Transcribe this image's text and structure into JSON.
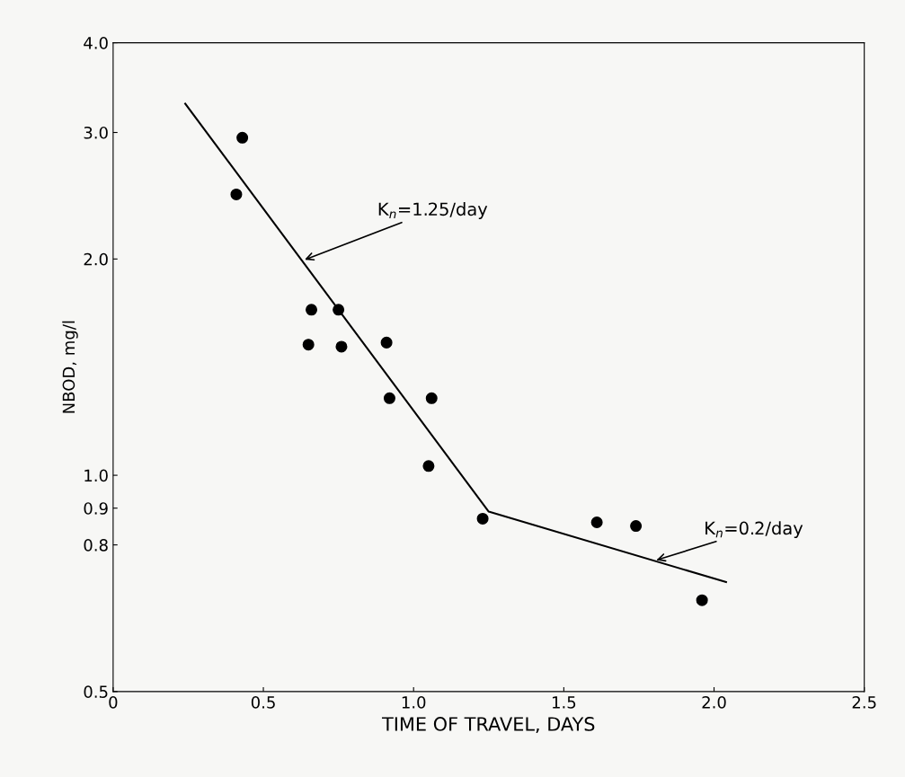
{
  "chart_data": {
    "type": "scatter",
    "xlabel": "TIME OF TRAVEL, DAYS",
    "ylabel": "NBOD, mg/l",
    "log": "y",
    "grid": false,
    "legend": false,
    "marker": "circle",
    "xlim": [
      0,
      2.5
    ],
    "xticks": [
      0,
      0.5,
      {
        "value": 1,
        "label": "1.0"
      },
      1.5,
      {
        "value": 2,
        "label": "2.0"
      },
      2.5
    ],
    "ylim": [
      0.5,
      4.0
    ],
    "yticks": [
      0.5,
      0.8,
      0.9,
      {
        "value": 1,
        "label": "1.0"
      },
      {
        "value": 2,
        "label": "2.0"
      },
      {
        "value": 3,
        "label": "3.0"
      },
      {
        "value": 4,
        "label": "4.0"
      }
    ],
    "series": [
      {
        "color": "#000000",
        "x": [
          0.41,
          0.43,
          0.66,
          0.65,
          0.75,
          0.76,
          0.91,
          0.92,
          1.06,
          1.05,
          1.23,
          1.61,
          1.74,
          1.96
        ],
        "values": [
          2.46,
          2.95,
          1.7,
          1.52,
          1.7,
          1.51,
          1.53,
          1.28,
          1.28,
          1.03,
          0.87,
          0.86,
          0.85,
          0.67
        ]
      },
      {
        "type": "line",
        "color": "#000000",
        "line_style": "solid",
        "marker": "none",
        "x": [
          0.24,
          1.25,
          2.04
        ],
        "values": [
          3.29,
          0.89,
          0.71
        ]
      }
    ],
    "annotations": [
      {
        "text": "K$_{n}$=1.25/day",
        "x": 0.63,
        "y": 1.99
      },
      {
        "text": "K$_{n}$=0.2/day",
        "x": 1.8,
        "y": 0.76
      }
    ]
  }
}
